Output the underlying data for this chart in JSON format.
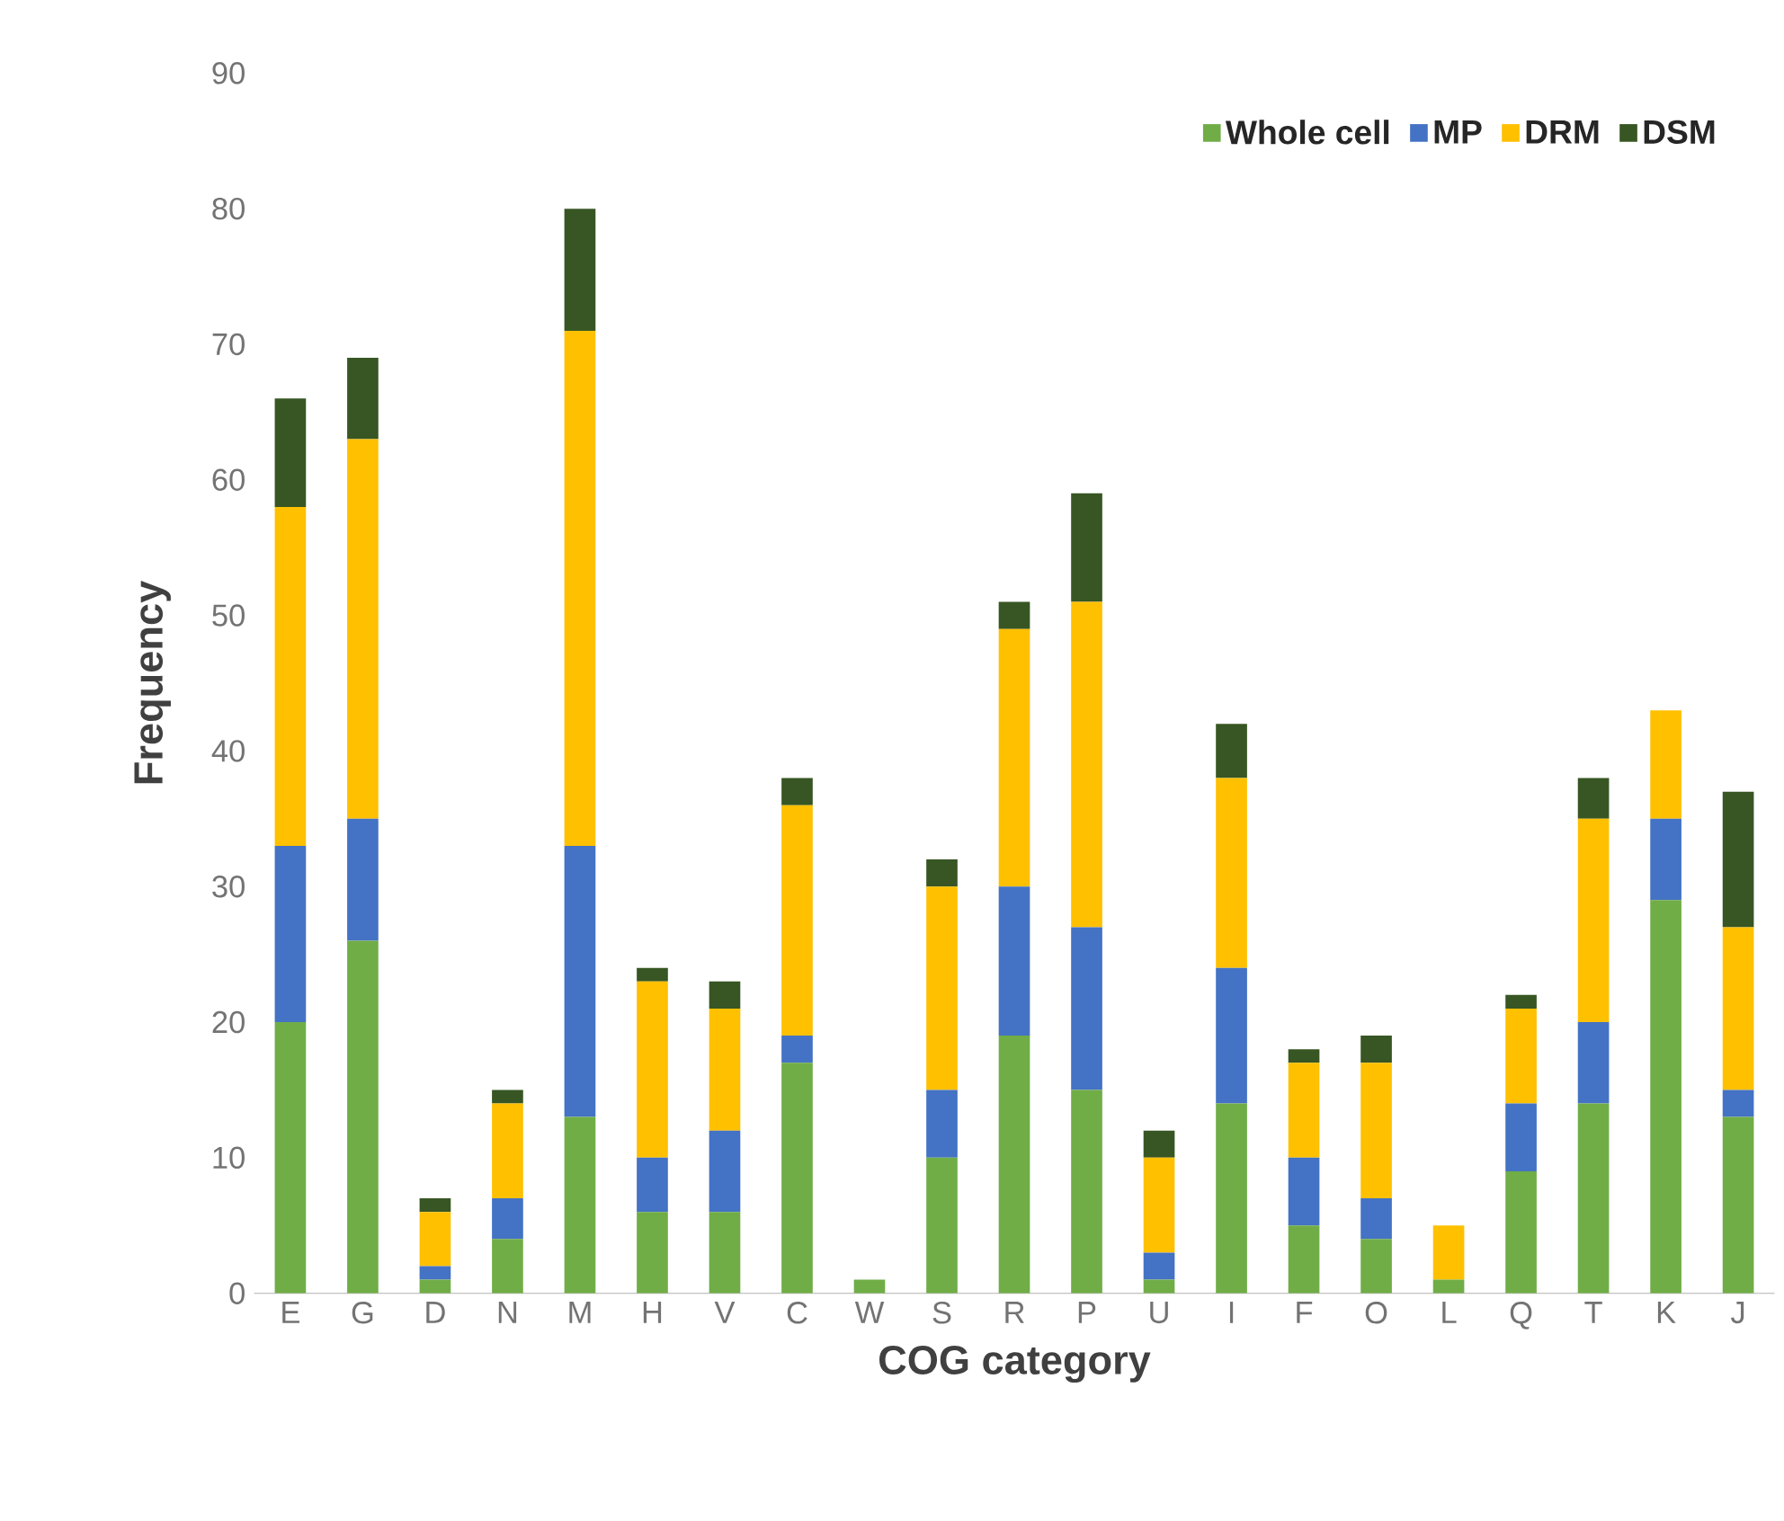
{
  "chart_data": {
    "type": "bar",
    "stacked": true,
    "xlabel": "COG category",
    "ylabel": "Frequency",
    "categories": [
      "E",
      "G",
      "D",
      "N",
      "M",
      "H",
      "V",
      "C",
      "W",
      "S",
      "R",
      "P",
      "U",
      "I",
      "F",
      "O",
      "L",
      "Q",
      "T",
      "K",
      "J"
    ],
    "ylim": [
      0,
      90
    ],
    "yticks": [
      0,
      10,
      20,
      30,
      40,
      50,
      60,
      70,
      80,
      90
    ],
    "legend": "top right",
    "series": [
      {
        "name": "Whole cell",
        "color": "#70ad47",
        "values": [
          20,
          26,
          1,
          4,
          13,
          6,
          6,
          17,
          1,
          10,
          19,
          15,
          1,
          14,
          5,
          4,
          1,
          9,
          14,
          29,
          13
        ]
      },
      {
        "name": "MP",
        "color": "#4472c4",
        "values": [
          13,
          9,
          1,
          3,
          20,
          4,
          6,
          2,
          0,
          5,
          11,
          12,
          2,
          10,
          5,
          3,
          0,
          5,
          6,
          6,
          2
        ]
      },
      {
        "name": "DRM",
        "color": "#ffc000",
        "values": [
          25,
          28,
          4,
          7,
          38,
          13,
          9,
          17,
          0,
          15,
          19,
          24,
          7,
          14,
          7,
          10,
          4,
          7,
          15,
          8,
          12
        ]
      },
      {
        "name": "DSM",
        "color": "#375623",
        "values": [
          8,
          6,
          1,
          1,
          9,
          1,
          2,
          2,
          0,
          2,
          2,
          8,
          2,
          4,
          1,
          2,
          0,
          1,
          3,
          0,
          10
        ]
      }
    ]
  }
}
